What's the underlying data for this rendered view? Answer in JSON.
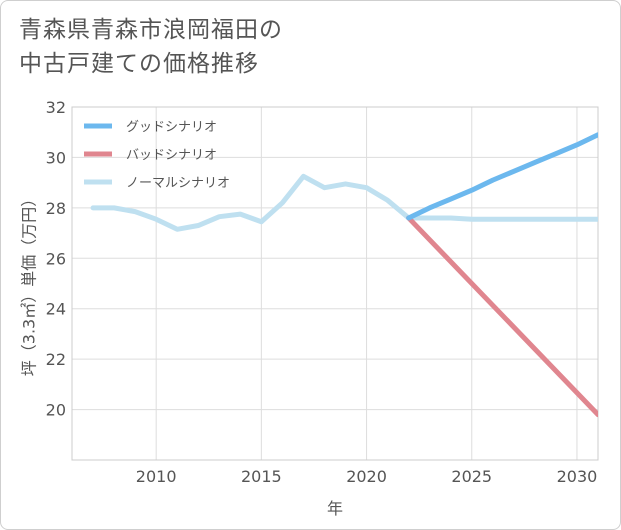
{
  "title": {
    "line1": "青森県青森市浪岡福田の",
    "line2": "中古戸建ての価格推移"
  },
  "colors": {
    "good": "#6cb8ee",
    "bad": "#e0868f",
    "normal": "#bfe0f0",
    "grid": "#dddddd",
    "text": "#555555"
  },
  "chart_data": {
    "type": "line",
    "title": "青森県青森市浪岡福田の中古戸建ての価格推移",
    "xlabel": "年",
    "ylabel": "坪（3.3㎡）単価（万円）",
    "xlim": [
      2006,
      2031
    ],
    "ylim": [
      18,
      32
    ],
    "xticks": [
      2010,
      2015,
      2020,
      2025,
      2030
    ],
    "yticks": [
      20,
      22,
      24,
      26,
      28,
      30,
      32
    ],
    "legend_position": "top-left",
    "series": [
      {
        "name": "グッドシナリオ",
        "key": "good",
        "x": [
          2022,
          2023,
          2024,
          2025,
          2026,
          2027,
          2028,
          2029,
          2030,
          2031
        ],
        "values": [
          27.6,
          28.0,
          28.35,
          28.7,
          29.1,
          29.45,
          29.8,
          30.15,
          30.5,
          30.9
        ]
      },
      {
        "name": "バッドシナリオ",
        "key": "bad",
        "x": [
          2022,
          2031
        ],
        "values": [
          27.6,
          19.8
        ]
      },
      {
        "name": "ノーマルシナリオ",
        "key": "normal",
        "x": [
          2007,
          2008,
          2009,
          2010,
          2011,
          2012,
          2013,
          2014,
          2015,
          2016,
          2017,
          2018,
          2019,
          2020,
          2021,
          2022,
          2023,
          2024,
          2025,
          2026,
          2027,
          2028,
          2029,
          2030,
          2031
        ],
        "values": [
          28.0,
          28.0,
          27.85,
          27.55,
          27.15,
          27.3,
          27.65,
          27.75,
          27.45,
          28.2,
          29.25,
          28.8,
          28.95,
          28.8,
          28.3,
          27.6,
          27.6,
          27.6,
          27.55,
          27.55,
          27.55,
          27.55,
          27.55,
          27.55,
          27.55
        ]
      }
    ]
  }
}
